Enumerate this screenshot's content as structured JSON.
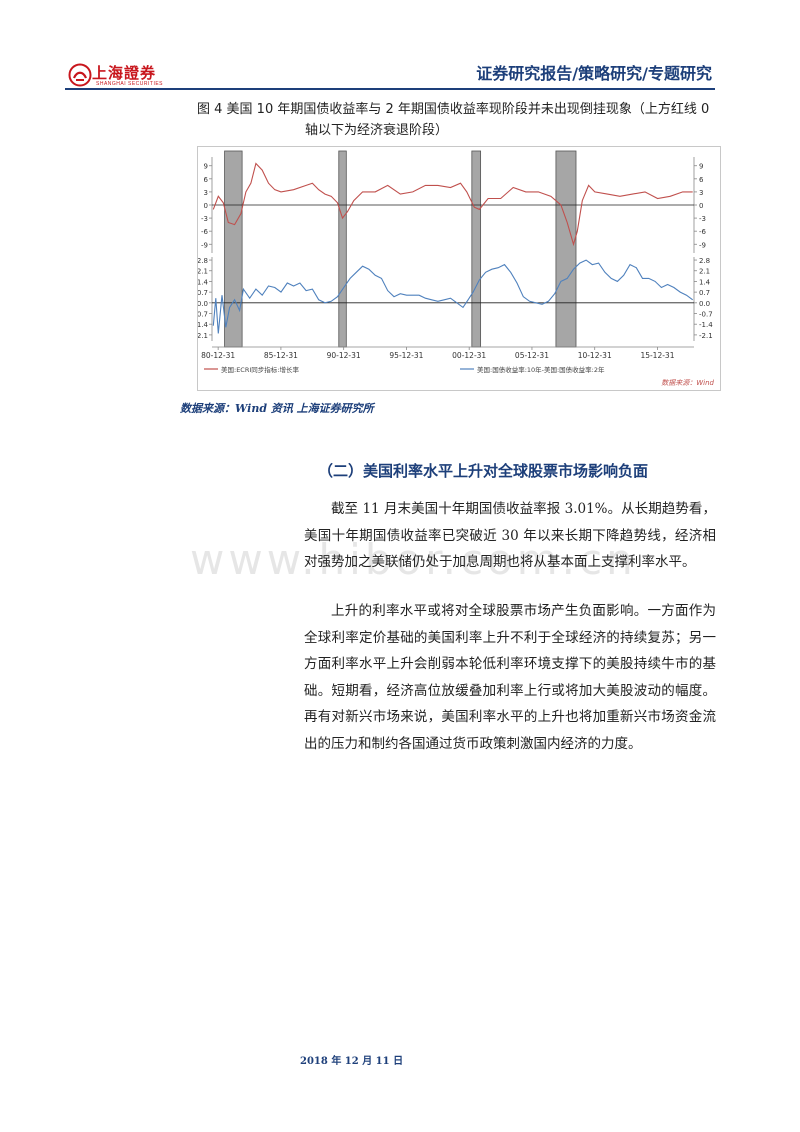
{
  "header": {
    "logo_text": "上海證券",
    "logo_subtext": "SHANGHAI SECURITIES",
    "title": "证券研究报告/策略研究/专题研究"
  },
  "figure": {
    "caption_line1": "图 4  美国 10 年期国债收益率与 2 年期国债收益率现阶段并未出现倒挂现象（上方红线 0",
    "caption_line2": "轴以下为经济衰退阶段）",
    "source_label": "数据来源：Wind 资讯  上海证券研究所"
  },
  "chart_data": {
    "type": "line",
    "x_ticks": [
      "80-12-31",
      "85-12-31",
      "90-12-31",
      "95-12-31",
      "00-12-31",
      "05-12-31",
      "10-12-31",
      "15-12-31"
    ],
    "x_tick_years": [
      1980.99,
      1985.99,
      1990.99,
      1995.99,
      2000.99,
      2005.99,
      2010.99,
      2015.99
    ],
    "xlim": [
      1980.5,
      2018.9
    ],
    "recession_bands": [
      [
        1981.5,
        1982.9
      ],
      [
        1990.6,
        1991.2
      ],
      [
        2001.2,
        2001.9
      ],
      [
        2007.9,
        2009.5
      ]
    ],
    "panels": [
      {
        "name": "美国:ECRI同步指标:增长率",
        "color": "#c0504d",
        "ylim": [
          -11,
          11
        ],
        "y_ticks": [
          9,
          6,
          3,
          0,
          -3,
          -6,
          -9
        ],
        "y_tick_labels": [
          "9",
          "6",
          "3",
          "0",
          "-3",
          "-6",
          "-9"
        ],
        "points": [
          [
            1980.6,
            -1
          ],
          [
            1981.0,
            2
          ],
          [
            1981.4,
            0.5
          ],
          [
            1981.8,
            -4
          ],
          [
            1982.3,
            -4.5
          ],
          [
            1982.8,
            -2
          ],
          [
            1983.2,
            3
          ],
          [
            1983.6,
            5
          ],
          [
            1984.0,
            9.5
          ],
          [
            1984.5,
            8
          ],
          [
            1985.0,
            5
          ],
          [
            1985.5,
            3.5
          ],
          [
            1986.0,
            3
          ],
          [
            1987.0,
            3.5
          ],
          [
            1988.0,
            4.5
          ],
          [
            1988.5,
            5
          ],
          [
            1989.0,
            3.5
          ],
          [
            1989.5,
            2.5
          ],
          [
            1990.0,
            2
          ],
          [
            1990.5,
            0.5
          ],
          [
            1990.9,
            -3
          ],
          [
            1991.3,
            -1.5
          ],
          [
            1991.8,
            1
          ],
          [
            1992.5,
            3
          ],
          [
            1993.5,
            3
          ],
          [
            1994.5,
            4.5
          ],
          [
            1995.5,
            2.5
          ],
          [
            1996.5,
            3
          ],
          [
            1997.5,
            4.5
          ],
          [
            1998.5,
            4.5
          ],
          [
            1999.5,
            4
          ],
          [
            2000.3,
            5
          ],
          [
            2000.8,
            3
          ],
          [
            2001.4,
            -0.5
          ],
          [
            2001.8,
            -1
          ],
          [
            2002.5,
            1.5
          ],
          [
            2003.5,
            1.5
          ],
          [
            2004.5,
            4
          ],
          [
            2005.5,
            3
          ],
          [
            2006.5,
            3
          ],
          [
            2007.5,
            2
          ],
          [
            2008.3,
            0
          ],
          [
            2008.8,
            -4
          ],
          [
            2009.3,
            -9
          ],
          [
            2009.6,
            -6
          ],
          [
            2010.0,
            1
          ],
          [
            2010.5,
            4.5
          ],
          [
            2011.0,
            3
          ],
          [
            2012.0,
            2.5
          ],
          [
            2013.0,
            2
          ],
          [
            2014.0,
            2.5
          ],
          [
            2015.0,
            3
          ],
          [
            2016.0,
            1.5
          ],
          [
            2017.0,
            2
          ],
          [
            2018.0,
            3
          ],
          [
            2018.8,
            3
          ]
        ]
      },
      {
        "name": "美国:国债收益率:10年-美国:国债收益率:2年",
        "color": "#4f81bd",
        "ylim": [
          -2.5,
          3.0
        ],
        "y_ticks": [
          2.8,
          2.1,
          1.4,
          0.7,
          0.0,
          -0.7,
          -1.4,
          -2.1
        ],
        "y_tick_labels": [
          "2.8",
          "2.1",
          "1.4",
          "0.7",
          "0.0",
          "-0.7",
          "-1.4",
          "-2.1"
        ],
        "points": [
          [
            1980.6,
            -1.5
          ],
          [
            1980.8,
            0.3
          ],
          [
            1981.0,
            -2.0
          ],
          [
            1981.3,
            0.5
          ],
          [
            1981.6,
            -1.6
          ],
          [
            1981.9,
            -0.3
          ],
          [
            1982.3,
            0.2
          ],
          [
            1982.7,
            -0.5
          ],
          [
            1983.0,
            0.9
          ],
          [
            1983.5,
            0.3
          ],
          [
            1984.0,
            0.9
          ],
          [
            1984.5,
            0.5
          ],
          [
            1985.0,
            1.1
          ],
          [
            1985.5,
            1.0
          ],
          [
            1986.0,
            0.7
          ],
          [
            1986.5,
            1.3
          ],
          [
            1987.0,
            1.1
          ],
          [
            1987.5,
            1.3
          ],
          [
            1988.0,
            0.8
          ],
          [
            1988.5,
            0.9
          ],
          [
            1989.0,
            0.2
          ],
          [
            1989.5,
            0.0
          ],
          [
            1990.0,
            0.1
          ],
          [
            1990.5,
            0.4
          ],
          [
            1991.0,
            1.0
          ],
          [
            1991.5,
            1.6
          ],
          [
            1992.0,
            2.0
          ],
          [
            1992.5,
            2.4
          ],
          [
            1993.0,
            2.2
          ],
          [
            1993.5,
            1.8
          ],
          [
            1994.0,
            1.6
          ],
          [
            1994.5,
            0.8
          ],
          [
            1995.0,
            0.4
          ],
          [
            1995.5,
            0.6
          ],
          [
            1996.0,
            0.5
          ],
          [
            1996.5,
            0.5
          ],
          [
            1997.0,
            0.5
          ],
          [
            1997.5,
            0.3
          ],
          [
            1998.0,
            0.2
          ],
          [
            1998.5,
            0.1
          ],
          [
            1999.0,
            0.2
          ],
          [
            1999.5,
            0.3
          ],
          [
            2000.0,
            0.0
          ],
          [
            2000.5,
            -0.3
          ],
          [
            2000.9,
            0.2
          ],
          [
            2001.3,
            0.7
          ],
          [
            2001.8,
            1.5
          ],
          [
            2002.3,
            2.0
          ],
          [
            2002.8,
            2.2
          ],
          [
            2003.3,
            2.3
          ],
          [
            2003.8,
            2.5
          ],
          [
            2004.3,
            2.0
          ],
          [
            2004.8,
            1.3
          ],
          [
            2005.3,
            0.4
          ],
          [
            2005.8,
            0.1
          ],
          [
            2006.3,
            0.0
          ],
          [
            2006.8,
            -0.1
          ],
          [
            2007.3,
            0.1
          ],
          [
            2007.8,
            0.6
          ],
          [
            2008.3,
            1.4
          ],
          [
            2008.8,
            1.6
          ],
          [
            2009.3,
            2.2
          ],
          [
            2009.8,
            2.6
          ],
          [
            2010.3,
            2.8
          ],
          [
            2010.8,
            2.5
          ],
          [
            2011.3,
            2.6
          ],
          [
            2011.8,
            2.0
          ],
          [
            2012.3,
            1.6
          ],
          [
            2012.8,
            1.4
          ],
          [
            2013.3,
            1.8
          ],
          [
            2013.8,
            2.5
          ],
          [
            2014.3,
            2.3
          ],
          [
            2014.8,
            1.6
          ],
          [
            2015.3,
            1.6
          ],
          [
            2015.8,
            1.4
          ],
          [
            2016.3,
            1.0
          ],
          [
            2016.8,
            1.2
          ],
          [
            2017.3,
            1.0
          ],
          [
            2017.8,
            0.7
          ],
          [
            2018.3,
            0.5
          ],
          [
            2018.8,
            0.2
          ]
        ]
      }
    ],
    "legend": [
      "美国:ECRI同步指标:增长率",
      "美国:国债收益率:10年-美国:国债收益率:2年"
    ],
    "legend_placement": "bottom",
    "source_note": "数据来源：Wind"
  },
  "section": {
    "title": "（二）美国利率水平上升对全球股票市场影响负面"
  },
  "body": {
    "p1": "截至 11 月末美国十年期国债收益率报 3.01%。从长期趋势看，美国十年期国债收益率已突破近 30 年以来长期下降趋势线，经济相对强势加之美联储仍处于加息周期也将从基本面上支撑利率水平。",
    "p2": "上升的利率水平或将对全球股票市场产生负面影响。一方面作为全球利率定价基础的美国利率上升不利于全球经济的持续复苏；另一方面利率水平上升会削弱本轮低利率环境支撑下的美股持续牛市的基础。短期看，经济高位放缓叠加利率上行或将加大美股波动的幅度。再有对新兴市场来说，美国利率水平的上升也将加重新兴市场资金流出的压力和制约各国通过货币政策刺激国内经济的力度。"
  },
  "footer": {
    "date": "2018 年 12 月 11 日"
  },
  "watermark": "www.hibor.com.cn"
}
